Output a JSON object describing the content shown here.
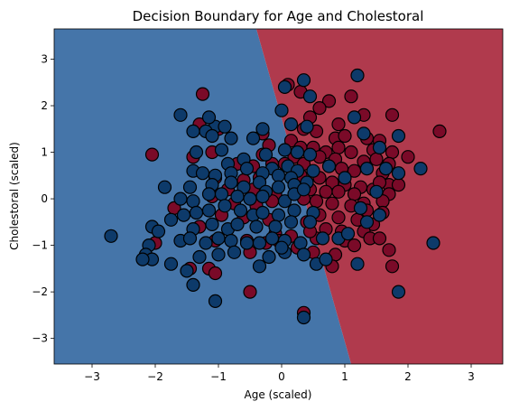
{
  "chart_data": {
    "type": "scatter",
    "title": "Decision Boundary for Age and Cholestoral",
    "xlabel": "Age (scaled)",
    "ylabel": "Cholestoral (scaled)",
    "xlim": [
      -3.6,
      3.5
    ],
    "ylim": [
      -3.55,
      3.65
    ],
    "xticks": [
      -3,
      -2,
      -1,
      0,
      1,
      2,
      3
    ],
    "yticks": [
      -3,
      -2,
      -1,
      0,
      1,
      2,
      3
    ],
    "regions": [
      {
        "class": 0,
        "color": "#4575a9",
        "side": "left"
      },
      {
        "class": 1,
        "color": "#b03a4d",
        "side": "right"
      }
    ],
    "boundary": [
      [
        -0.4,
        3.65
      ],
      [
        1.1,
        -3.55
      ]
    ],
    "colors": {
      "class_0": "#0d3a6a",
      "class_1": "#7a0a28"
    },
    "series": [
      {
        "class": 1,
        "points": [
          [
            0.1,
            2.45
          ],
          [
            0.3,
            2.3
          ],
          [
            0.75,
            2.1
          ],
          [
            1.1,
            2.2
          ],
          [
            0.6,
            1.95
          ],
          [
            1.3,
            1.8
          ],
          [
            1.75,
            1.8
          ],
          [
            0.45,
            1.75
          ],
          [
            0.9,
            1.6
          ],
          [
            2.5,
            1.45
          ],
          [
            0.35,
            1.5
          ],
          [
            0.55,
            1.45
          ],
          [
            0.85,
            1.3
          ],
          [
            1.0,
            1.35
          ],
          [
            1.35,
            1.3
          ],
          [
            1.55,
            1.25
          ],
          [
            0.15,
            1.25
          ],
          [
            0.3,
            1.1
          ],
          [
            0.5,
            1.1
          ],
          [
            0.7,
            1.0
          ],
          [
            0.9,
            1.1
          ],
          [
            1.1,
            1.0
          ],
          [
            1.45,
            1.05
          ],
          [
            1.75,
            1.0
          ],
          [
            0.2,
            0.9
          ],
          [
            0.6,
            0.9
          ],
          [
            0.85,
            0.85
          ],
          [
            1.3,
            0.8
          ],
          [
            1.5,
            0.85
          ],
          [
            1.7,
            0.75
          ],
          [
            2.0,
            0.9
          ],
          [
            0.05,
            0.75
          ],
          [
            0.35,
            0.75
          ],
          [
            0.95,
            0.65
          ],
          [
            1.15,
            0.6
          ],
          [
            1.6,
            0.55
          ],
          [
            1.7,
            0.3
          ],
          [
            0.3,
            0.5
          ],
          [
            0.6,
            0.45
          ],
          [
            0.8,
            0.35
          ],
          [
            1.0,
            0.3
          ],
          [
            1.25,
            0.25
          ],
          [
            1.45,
            0.2
          ],
          [
            1.55,
            0.35
          ],
          [
            1.85,
            0.3
          ],
          [
            0.45,
            0.2
          ],
          [
            0.7,
            0.15
          ],
          [
            0.9,
            0.15
          ],
          [
            1.15,
            0.1
          ],
          [
            1.7,
            0.1
          ],
          [
            1.3,
            -0.1
          ],
          [
            1.6,
            -0.05
          ],
          [
            0.35,
            0.0
          ],
          [
            0.55,
            -0.05
          ],
          [
            0.8,
            -0.1
          ],
          [
            1.1,
            -0.15
          ],
          [
            1.35,
            -0.25
          ],
          [
            1.6,
            -0.3
          ],
          [
            0.6,
            -0.35
          ],
          [
            0.9,
            -0.4
          ],
          [
            1.2,
            -0.45
          ],
          [
            1.45,
            -0.55
          ],
          [
            0.4,
            -0.5
          ],
          [
            0.7,
            -0.65
          ],
          [
            0.95,
            -0.7
          ],
          [
            1.3,
            -0.7
          ],
          [
            1.4,
            -0.85
          ],
          [
            1.55,
            -0.85
          ],
          [
            0.55,
            -0.85
          ],
          [
            1.0,
            -0.9
          ],
          [
            1.15,
            -1.0
          ],
          [
            0.5,
            -1.15
          ],
          [
            0.85,
            -1.2
          ],
          [
            1.7,
            -1.1
          ],
          [
            0.8,
            -1.45
          ],
          [
            1.75,
            -1.45
          ],
          [
            -1.3,
            1.6
          ],
          [
            -1.0,
            1.5
          ],
          [
            -1.25,
            2.25
          ],
          [
            -0.3,
            1.4
          ],
          [
            -0.2,
            1.15
          ],
          [
            -0.3,
            0.95
          ],
          [
            -1.1,
            1.0
          ],
          [
            -1.4,
            0.9
          ],
          [
            -2.05,
            0.95
          ],
          [
            -0.7,
            0.75
          ],
          [
            -0.45,
            0.7
          ],
          [
            -0.15,
            0.75
          ],
          [
            -0.6,
            0.4
          ],
          [
            -0.35,
            0.45
          ],
          [
            -1.05,
            0.45
          ],
          [
            -0.85,
            0.2
          ],
          [
            -0.45,
            0.2
          ],
          [
            -0.1,
            0.1
          ],
          [
            -1.1,
            0.05
          ],
          [
            -0.75,
            -0.1
          ],
          [
            -0.4,
            -0.15
          ],
          [
            -0.15,
            -0.05
          ],
          [
            -0.95,
            -0.35
          ],
          [
            -0.6,
            -0.4
          ],
          [
            -0.2,
            -0.45
          ],
          [
            -0.1,
            -0.75
          ],
          [
            -1.3,
            -0.6
          ],
          [
            -1.05,
            -0.9
          ],
          [
            -0.55,
            -0.9
          ],
          [
            -0.25,
            -0.95
          ],
          [
            -0.5,
            -1.15
          ],
          [
            -1.7,
            -0.2
          ],
          [
            -2.0,
            -0.95
          ],
          [
            -1.45,
            -1.5
          ],
          [
            -1.15,
            -1.5
          ],
          [
            -1.05,
            -1.6
          ],
          [
            -0.5,
            -2.0
          ],
          [
            -0.05,
            -0.9
          ],
          [
            0.15,
            -0.8
          ],
          [
            0.25,
            -1.05
          ],
          [
            0.35,
            -2.45
          ],
          [
            0.45,
            -0.7
          ]
        ]
      },
      {
        "class": 0,
        "points": [
          [
            1.2,
            2.65
          ],
          [
            0.35,
            2.55
          ],
          [
            0.05,
            2.4
          ],
          [
            0.45,
            2.2
          ],
          [
            0.0,
            1.9
          ],
          [
            1.15,
            1.75
          ],
          [
            0.15,
            1.6
          ],
          [
            0.4,
            1.55
          ],
          [
            -1.05,
            1.55
          ],
          [
            -0.9,
            1.55
          ],
          [
            -1.6,
            1.8
          ],
          [
            -1.15,
            1.75
          ],
          [
            -1.2,
            1.45
          ],
          [
            -1.4,
            1.45
          ],
          [
            -0.3,
            1.5
          ],
          [
            -0.45,
            1.3
          ],
          [
            1.3,
            1.4
          ],
          [
            1.85,
            1.35
          ],
          [
            -1.1,
            1.35
          ],
          [
            -0.8,
            1.3
          ],
          [
            0.25,
            1.0
          ],
          [
            0.05,
            1.05
          ],
          [
            -0.25,
            0.95
          ],
          [
            1.55,
            1.1
          ],
          [
            0.45,
            0.95
          ],
          [
            -1.35,
            1.0
          ],
          [
            -0.95,
            1.05
          ],
          [
            -0.6,
            0.85
          ],
          [
            -0.85,
            0.75
          ],
          [
            -0.15,
            0.65
          ],
          [
            0.1,
            0.7
          ],
          [
            0.25,
            0.6
          ],
          [
            0.75,
            0.7
          ],
          [
            1.35,
            0.65
          ],
          [
            1.65,
            0.65
          ],
          [
            -1.4,
            0.6
          ],
          [
            -1.25,
            0.55
          ],
          [
            -1.05,
            0.5
          ],
          [
            -0.8,
            0.55
          ],
          [
            -0.55,
            0.65
          ],
          [
            -0.3,
            0.55
          ],
          [
            -0.05,
            0.5
          ],
          [
            0.15,
            0.45
          ],
          [
            0.5,
            0.6
          ],
          [
            2.2,
            0.65
          ],
          [
            -1.85,
            0.25
          ],
          [
            -1.45,
            0.25
          ],
          [
            -1.1,
            0.3
          ],
          [
            -0.8,
            0.35
          ],
          [
            -0.6,
            0.25
          ],
          [
            -0.35,
            0.35
          ],
          [
            -0.25,
            0.15
          ],
          [
            -0.05,
            0.25
          ],
          [
            0.2,
            0.3
          ],
          [
            0.4,
            0.35
          ],
          [
            1.85,
            0.55
          ],
          [
            1.0,
            0.45
          ],
          [
            -1.6,
            0.0
          ],
          [
            -1.4,
            -0.05
          ],
          [
            -1.15,
            0.1
          ],
          [
            -0.95,
            0.1
          ],
          [
            -0.7,
            0.05
          ],
          [
            -0.5,
            0.0
          ],
          [
            -0.3,
            0.05
          ],
          [
            0.05,
            -0.05
          ],
          [
            0.2,
            0.1
          ],
          [
            0.35,
            0.2
          ],
          [
            1.5,
            0.15
          ],
          [
            -1.75,
            -0.45
          ],
          [
            -1.55,
            -0.35
          ],
          [
            -1.35,
            -0.3
          ],
          [
            -1.15,
            -0.25
          ],
          [
            -0.9,
            -0.15
          ],
          [
            -0.65,
            -0.25
          ],
          [
            -0.45,
            -0.35
          ],
          [
            -0.3,
            -0.3
          ],
          [
            -0.05,
            -0.35
          ],
          [
            0.2,
            -0.25
          ],
          [
            0.5,
            -0.3
          ],
          [
            1.25,
            -0.2
          ],
          [
            1.55,
            -0.35
          ],
          [
            -2.05,
            -0.6
          ],
          [
            -1.95,
            -0.7
          ],
          [
            -1.4,
            -0.65
          ],
          [
            -1.1,
            -0.55
          ],
          [
            -0.85,
            -0.65
          ],
          [
            -0.7,
            -0.55
          ],
          [
            -0.4,
            -0.6
          ],
          [
            -0.1,
            -0.6
          ],
          [
            0.15,
            -0.5
          ],
          [
            0.45,
            -0.5
          ],
          [
            1.35,
            -0.5
          ],
          [
            2.4,
            -0.95
          ],
          [
            -2.7,
            -0.8
          ],
          [
            -2.1,
            -1.0
          ],
          [
            -1.6,
            -0.9
          ],
          [
            -1.45,
            -0.85
          ],
          [
            -1.2,
            -0.95
          ],
          [
            -1.0,
            -0.85
          ],
          [
            -0.8,
            -0.9
          ],
          [
            -0.55,
            -0.95
          ],
          [
            -0.35,
            -0.95
          ],
          [
            -0.15,
            -0.85
          ],
          [
            0.05,
            -0.9
          ],
          [
            0.3,
            -0.95
          ],
          [
            0.65,
            -0.85
          ],
          [
            0.9,
            -0.85
          ],
          [
            1.05,
            -0.75
          ],
          [
            -2.15,
            -1.2
          ],
          [
            -2.05,
            -1.3
          ],
          [
            -1.75,
            -1.4
          ],
          [
            -1.3,
            -1.25
          ],
          [
            -1.0,
            -1.2
          ],
          [
            -0.75,
            -1.15
          ],
          [
            -0.35,
            -1.45
          ],
          [
            -0.2,
            -1.25
          ],
          [
            0.05,
            -1.15
          ],
          [
            0.35,
            -1.2
          ],
          [
            0.55,
            -1.4
          ],
          [
            0.7,
            -1.3
          ],
          [
            1.2,
            -1.4
          ],
          [
            -1.4,
            -1.85
          ],
          [
            -1.5,
            -1.55
          ],
          [
            -1.05,
            -2.2
          ],
          [
            0.35,
            -2.55
          ],
          [
            1.85,
            -2.0
          ],
          [
            -2.2,
            -1.3
          ],
          [
            0.0,
            -1.05
          ]
        ]
      }
    ]
  }
}
